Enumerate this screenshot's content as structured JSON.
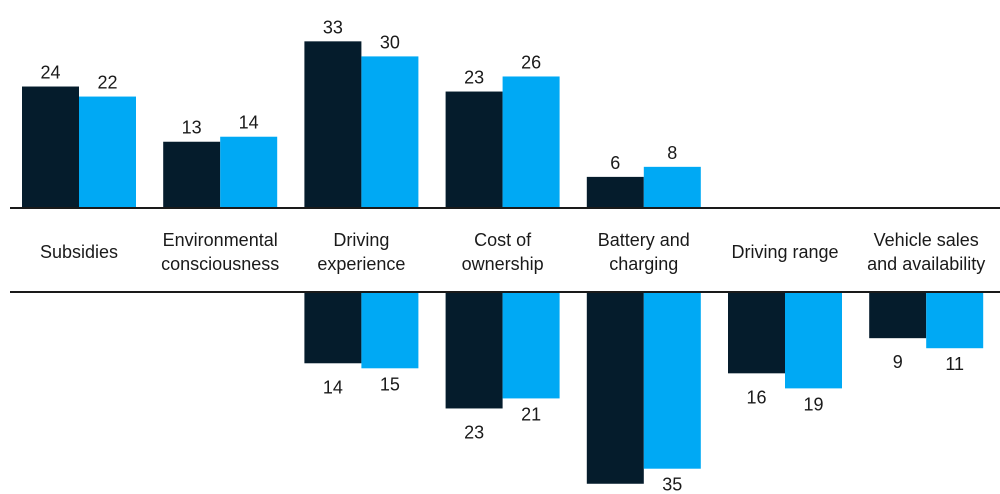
{
  "chart_data": {
    "type": "bar",
    "categories": [
      [
        "Subsidies"
      ],
      [
        "Environmental",
        "consciousness"
      ],
      [
        "Driving",
        "experience"
      ],
      [
        "Cost of",
        "ownership"
      ],
      [
        "Battery and",
        "charging"
      ],
      [
        "Driving range"
      ],
      [
        "Vehicle sales",
        "and availability"
      ]
    ],
    "series": [
      {
        "color": "#051c2c",
        "positive": [
          24,
          13,
          33,
          23,
          6,
          null,
          null
        ],
        "negative": [
          null,
          null,
          14,
          23,
          38,
          16,
          9
        ]
      },
      {
        "color": "#00a9f4",
        "positive": [
          22,
          14,
          30,
          26,
          8,
          null,
          null
        ],
        "negative": [
          null,
          null,
          15,
          21,
          35,
          19,
          11
        ]
      }
    ],
    "title": "",
    "xlabel": "",
    "ylabel": "",
    "grid": false,
    "legend": "none"
  }
}
